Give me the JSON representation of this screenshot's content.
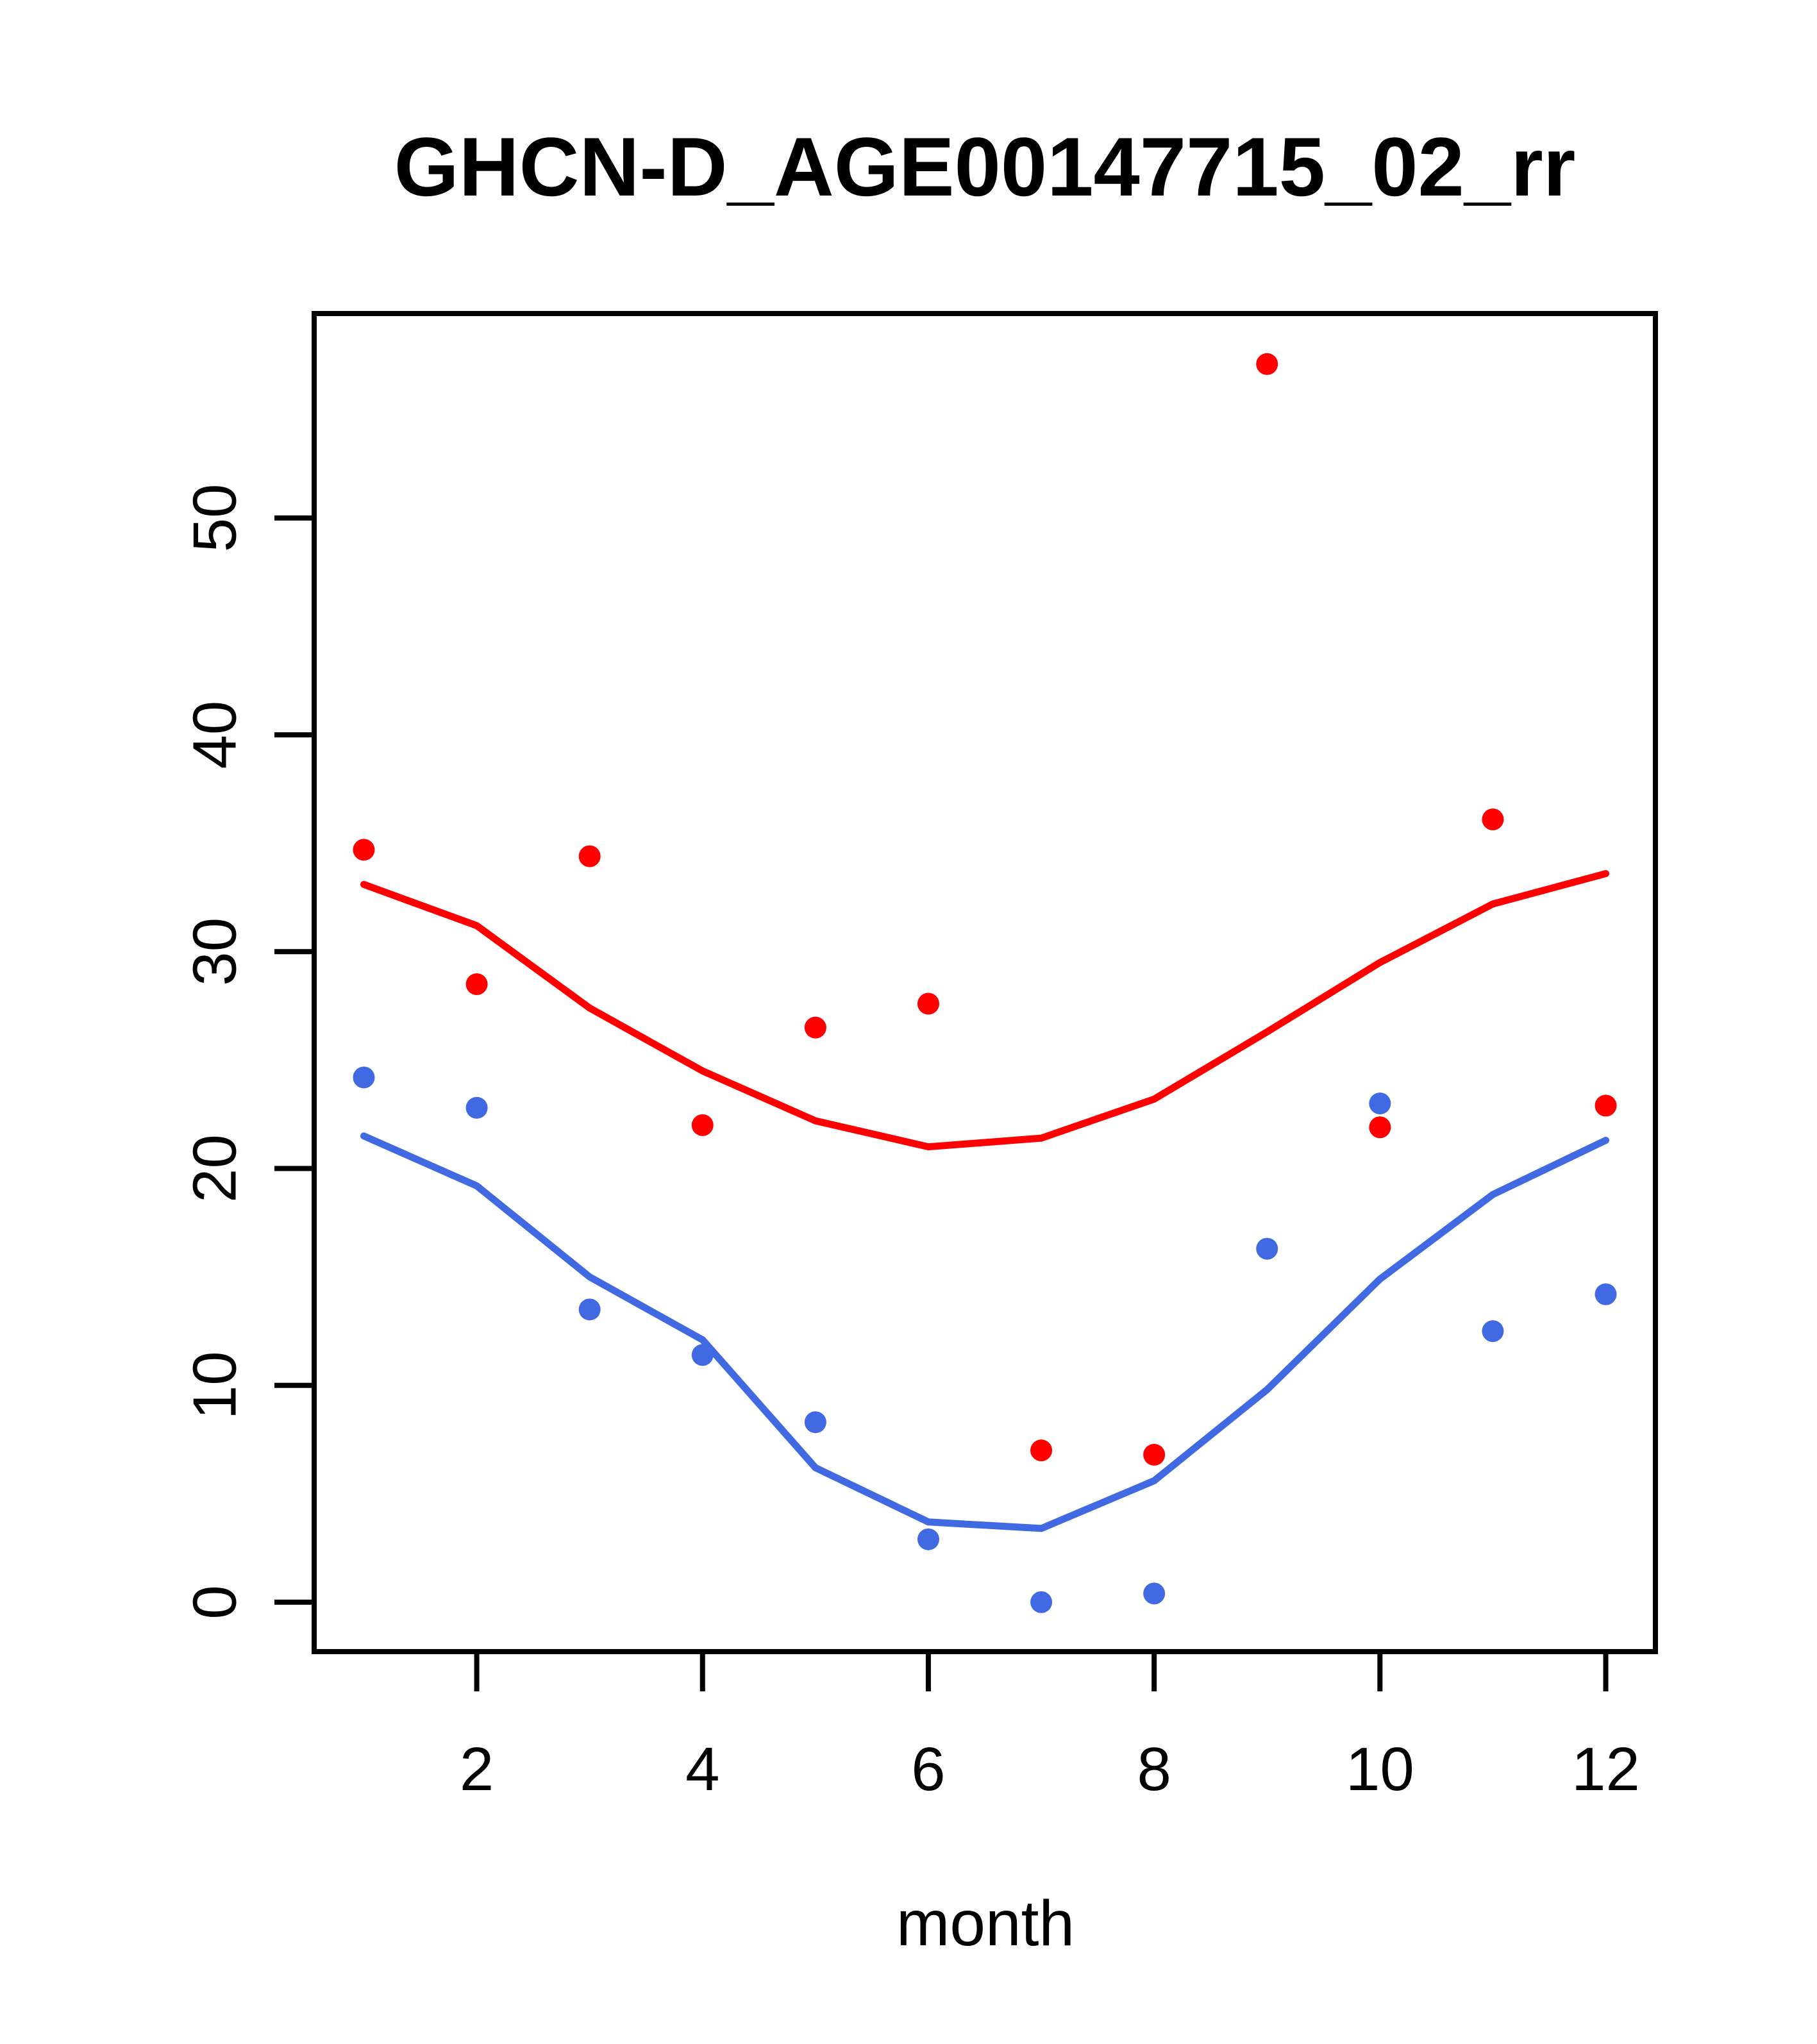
{
  "figure": {
    "background": "#ffffff",
    "frame_color": "#000000"
  },
  "chart_data": {
    "type": "scatter",
    "title": "GHCN-D_AGE00147715_02_rr",
    "xlabel": "month",
    "ylabel": "",
    "x": [
      1,
      2,
      3,
      4,
      5,
      6,
      7,
      8,
      9,
      10,
      11,
      12
    ],
    "x_ticks": [
      2,
      4,
      6,
      8,
      10,
      12
    ],
    "y_ticks": [
      0,
      10,
      20,
      30,
      40,
      50
    ],
    "xlim": [
      0.56,
      12.44
    ],
    "ylim": [
      -2.28,
      59.43
    ],
    "grid": false,
    "legend": "none",
    "series": [
      {
        "name": "red-points",
        "kind": "points",
        "color": "#FF0000",
        "values": [
          34.7,
          28.5,
          34.4,
          22.0,
          26.5,
          27.6,
          7.0,
          6.8,
          57.1,
          21.9,
          36.1,
          22.9
        ]
      },
      {
        "name": "blue-points",
        "kind": "points",
        "color": "#4169E1",
        "values": [
          24.2,
          22.8,
          13.5,
          11.4,
          8.3,
          2.9,
          0.0,
          0.4,
          16.3,
          23.0,
          12.5,
          14.2
        ]
      },
      {
        "name": "red-smooth-line",
        "kind": "line",
        "color": "#FF0000",
        "values": [
          33.1,
          31.2,
          27.4,
          24.5,
          22.2,
          21.0,
          21.4,
          23.2,
          26.3,
          29.5,
          32.2,
          33.6
        ]
      },
      {
        "name": "blue-smooth-line",
        "kind": "line",
        "color": "#4169E1",
        "values": [
          21.5,
          19.2,
          15.0,
          12.1,
          6.2,
          3.7,
          3.4,
          5.6,
          9.8,
          14.9,
          18.8,
          21.3
        ]
      }
    ]
  }
}
